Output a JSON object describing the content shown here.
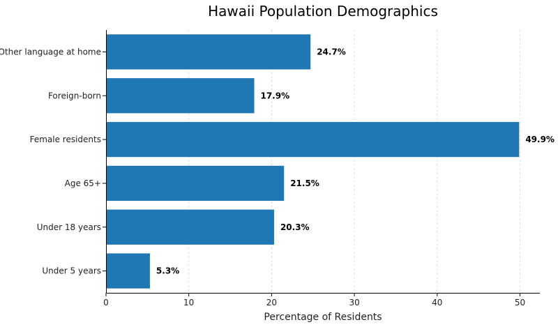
{
  "chart_data": {
    "type": "bar",
    "orientation": "horizontal",
    "title": "Hawaii Population Demographics",
    "xlabel": "Percentage of Residents",
    "ylabel": "",
    "categories": [
      "Under 5 years",
      "Under 18 years",
      "Age 65+",
      "Female residents",
      "Foreign-born",
      "Other language at home"
    ],
    "values": [
      5.3,
      20.3,
      21.5,
      49.9,
      17.9,
      24.7
    ],
    "value_labels": [
      "5.3%",
      "20.3%",
      "21.5%",
      "49.9%",
      "17.9%",
      "24.7%"
    ],
    "xlim": [
      0,
      52.4
    ],
    "xticks": [
      0,
      10,
      20,
      30,
      40,
      50
    ],
    "grid": "vertical dashed",
    "bar_color": "#1f77b4"
  }
}
